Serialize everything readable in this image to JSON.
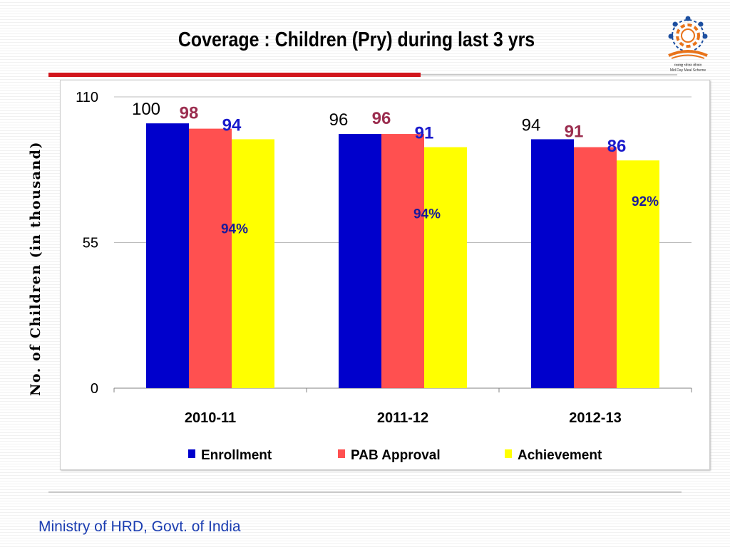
{
  "slide": {
    "title": "Coverage : Children (Pry) during last 3 yrs",
    "footer": "Ministry of HRD, Govt. of India",
    "logo_text": [
      "मध्याह्न भोजन योजना",
      "Mid Day Meal Scheme"
    ]
  },
  "colors": {
    "enrollment": "#0000cc",
    "pab_approval": "#ff5050",
    "achievement": "#ffff00",
    "title_rule": "#d1141b",
    "footer_text": "#1a3cb0",
    "pab_label": "#9b2d4f",
    "achievement_label": "#1a1acc",
    "percent_label": "#1a1a99"
  },
  "chart_data": {
    "type": "bar",
    "title": "",
    "xlabel": "",
    "ylabel": "No. of Children (in thousand)",
    "ylim": [
      0,
      110
    ],
    "yticks": [
      "0",
      "55",
      "110"
    ],
    "categories": [
      "2010-11",
      "2011-12",
      "2012-13"
    ],
    "series": [
      {
        "name": "Enrollment",
        "values": [
          100,
          96,
          94
        ],
        "labels": [
          "100",
          "96",
          "94"
        ]
      },
      {
        "name": "PAB Approval",
        "values": [
          98,
          96,
          91
        ],
        "labels": [
          "98",
          "96",
          "91"
        ]
      },
      {
        "name": "Achievement",
        "values": [
          94,
          91,
          86
        ],
        "labels": [
          "94",
          "91",
          "86"
        ]
      }
    ],
    "annotations": [
      "94%",
      "94%",
      "92%"
    ],
    "legend_position": "bottom",
    "grid": true
  }
}
